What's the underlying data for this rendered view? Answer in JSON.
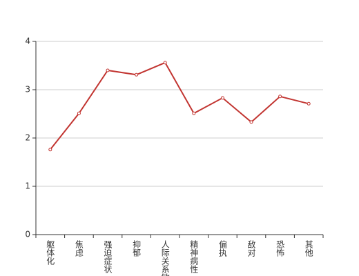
{
  "chart_data": {
    "type": "line",
    "categories": [
      "躯体化",
      "焦虑",
      "强迫症状",
      "抑郁",
      "人际关系敏感",
      "精神病性",
      "偏执",
      "敌对",
      "恐怖",
      "其他"
    ],
    "values": [
      1.76,
      2.51,
      3.4,
      3.31,
      3.56,
      2.51,
      2.83,
      2.33,
      2.86,
      2.71
    ],
    "color": "#c23531",
    "ylim": [
      0,
      4
    ],
    "yticks": [
      0,
      1,
      2,
      3,
      4
    ],
    "grid": true
  }
}
